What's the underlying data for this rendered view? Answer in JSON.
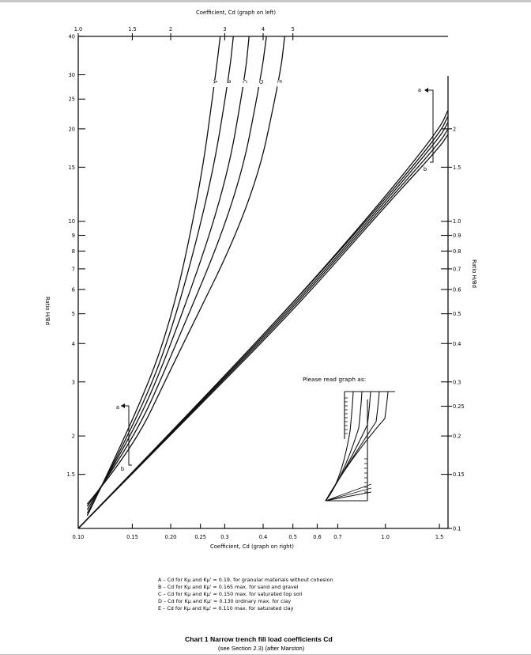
{
  "chart_data": {
    "type": "line",
    "xlabel_top": "Coefficient, Cd (graph on left)",
    "xlabel_bottom": "Coefficient, Cd (graph on right)",
    "ylabel_left": "Ratio H/Bd",
    "ylabel_right": "Ratio H/Bd",
    "x_top_ticks": [
      "1.0",
      "1.5",
      "2",
      "3",
      "4",
      "5"
    ],
    "x_bottom_ticks": [
      "0.10",
      "0.15",
      "0.20",
      "0.25",
      "0.3",
      "0.4",
      "0.5",
      "0.6",
      "0.7",
      "1.0",
      "1.5"
    ],
    "y_left_ticks": [
      "40",
      "30",
      "25",
      "20",
      "15",
      "10",
      "9",
      "8",
      "7",
      "6",
      "5",
      "4",
      "3",
      "2",
      "1.5"
    ],
    "y_right_ticks": [
      "2",
      "1.5",
      "1.0",
      "0.9",
      "0.8",
      "0.7",
      "0.6",
      "0.5",
      "0.4",
      "0.3",
      "0.25",
      "0.2",
      "0.15",
      "0.1"
    ],
    "series": [
      {
        "name": "A",
        "left_curve": {
          "Cd": [
            1.07,
            1.5,
            2,
            2.5,
            2.8,
            2.9
          ],
          "H_Bd": [
            1.1,
            2.2,
            4.6,
            13,
            30,
            40
          ]
        },
        "right_curve": {
          "Cd": [
            0.1,
            0.2,
            0.5,
            1.0,
            1.5,
            1.6
          ],
          "H_Bd": [
            0.1,
            0.205,
            0.54,
            1.2,
            2.0,
            2.3
          ]
        }
      },
      {
        "name": "B",
        "left_curve": {
          "Cd": [
            1.07,
            1.5,
            2,
            2.7,
            3.1,
            3.2
          ],
          "H_Bd": [
            1.12,
            2.1,
            4.2,
            13,
            30,
            40
          ]
        },
        "right_curve": {
          "Cd": [
            0.1,
            0.2,
            0.5,
            1.0,
            1.5,
            1.6
          ],
          "H_Bd": [
            0.1,
            0.205,
            0.54,
            1.18,
            1.93,
            2.2
          ]
        }
      },
      {
        "name": "C",
        "left_curve": {
          "Cd": [
            1.07,
            1.5,
            2,
            3,
            3.5,
            3.6
          ],
          "H_Bd": [
            1.15,
            2.0,
            3.9,
            12.5,
            30,
            40
          ]
        },
        "right_curve": {
          "Cd": [
            0.1,
            0.2,
            0.5,
            1.0,
            1.5,
            1.6
          ],
          "H_Bd": [
            0.1,
            0.204,
            0.53,
            1.16,
            1.87,
            2.1
          ]
        }
      },
      {
        "name": "D",
        "left_curve": {
          "Cd": [
            1.07,
            1.5,
            2,
            3.3,
            3.95,
            4.1
          ],
          "H_Bd": [
            1.18,
            1.9,
            3.6,
            12,
            30,
            40
          ]
        },
        "right_curve": {
          "Cd": [
            0.1,
            0.2,
            0.5,
            1.0,
            1.5,
            1.6
          ],
          "H_Bd": [
            0.1,
            0.203,
            0.52,
            1.14,
            1.8,
            2.0
          ]
        }
      },
      {
        "name": "E",
        "left_curve": {
          "Cd": [
            1.07,
            1.5,
            2,
            3.7,
            4.55,
            4.7
          ],
          "H_Bd": [
            1.2,
            1.8,
            3.3,
            11.5,
            30,
            40
          ]
        },
        "right_curve": {
          "Cd": [
            0.1,
            0.2,
            0.5,
            1.0,
            1.5,
            1.6
          ],
          "H_Bd": [
            0.1,
            0.202,
            0.51,
            1.12,
            1.74,
            1.92
          ]
        }
      }
    ],
    "annotations": [
      "a",
      "b",
      "a",
      "b"
    ],
    "inset_caption": "Please read graph as:",
    "legend": [
      "A – Cd for Kμ and Kμ' = 0.19, for granular materials without cohesion",
      "B – Cd for Kμ and Kμ' = 0.165 max. for sand and gravel",
      "C – Cd for Kμ and Kμ' = 0.150 max. for saturated top soil",
      "D – Cd for Kμ and Kμ' = 0.130 ordinary max. for clay",
      "E – Cd for Kμ and Kμ' = 0.110 max. for saturated clay"
    ],
    "title": "Chart 1  Narrow trench fill load coefficients Cd",
    "subtitle": "(see Section 2.3) (after Marston)"
  },
  "colors": {
    "ink": "#111111",
    "paper": "#ffffff"
  }
}
